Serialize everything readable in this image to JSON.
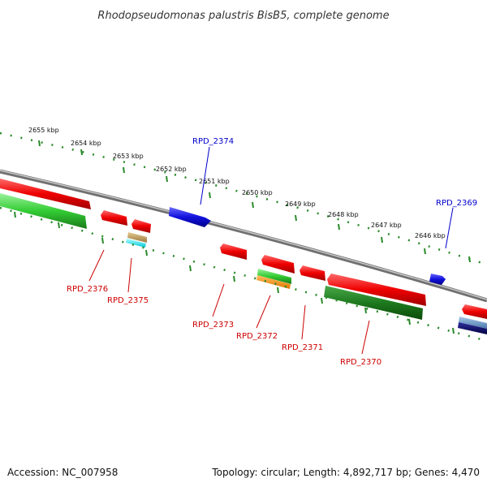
{
  "title": "Rhodopseudomonas palustris BisB5, complete genome",
  "footer": {
    "accession": "Accession: NC_007958",
    "summary": "Topology: circular; Length: 4,892,717 bp; Genes: 4,470"
  },
  "colors": {
    "forward_gene": "#ee0000",
    "reverse_gene": "#1111dd",
    "backbone": "#8a8a8a",
    "tick": "#2a8a2a",
    "forward_label": "#cc0000",
    "reverse_label": "#0000cc"
  },
  "scale_labels": [
    "2655 kbp",
    "2654 kbp",
    "2653 kbp",
    "2652 kbp",
    "2651 kbp",
    "2650 kbp",
    "2649 kbp",
    "2648 kbp",
    "2647 kbp",
    "2646 kbp"
  ],
  "gene_labels": {
    "rpd2374": "RPD_2374",
    "rpd2369": "RPD_2369",
    "rpd2376": "RPD_2376",
    "rpd2375": "RPD_2375",
    "rpd2373": "RPD_2373",
    "rpd2372": "RPD_2372",
    "rpd2371": "RPD_2371",
    "rpd2370": "RPD_2370"
  }
}
